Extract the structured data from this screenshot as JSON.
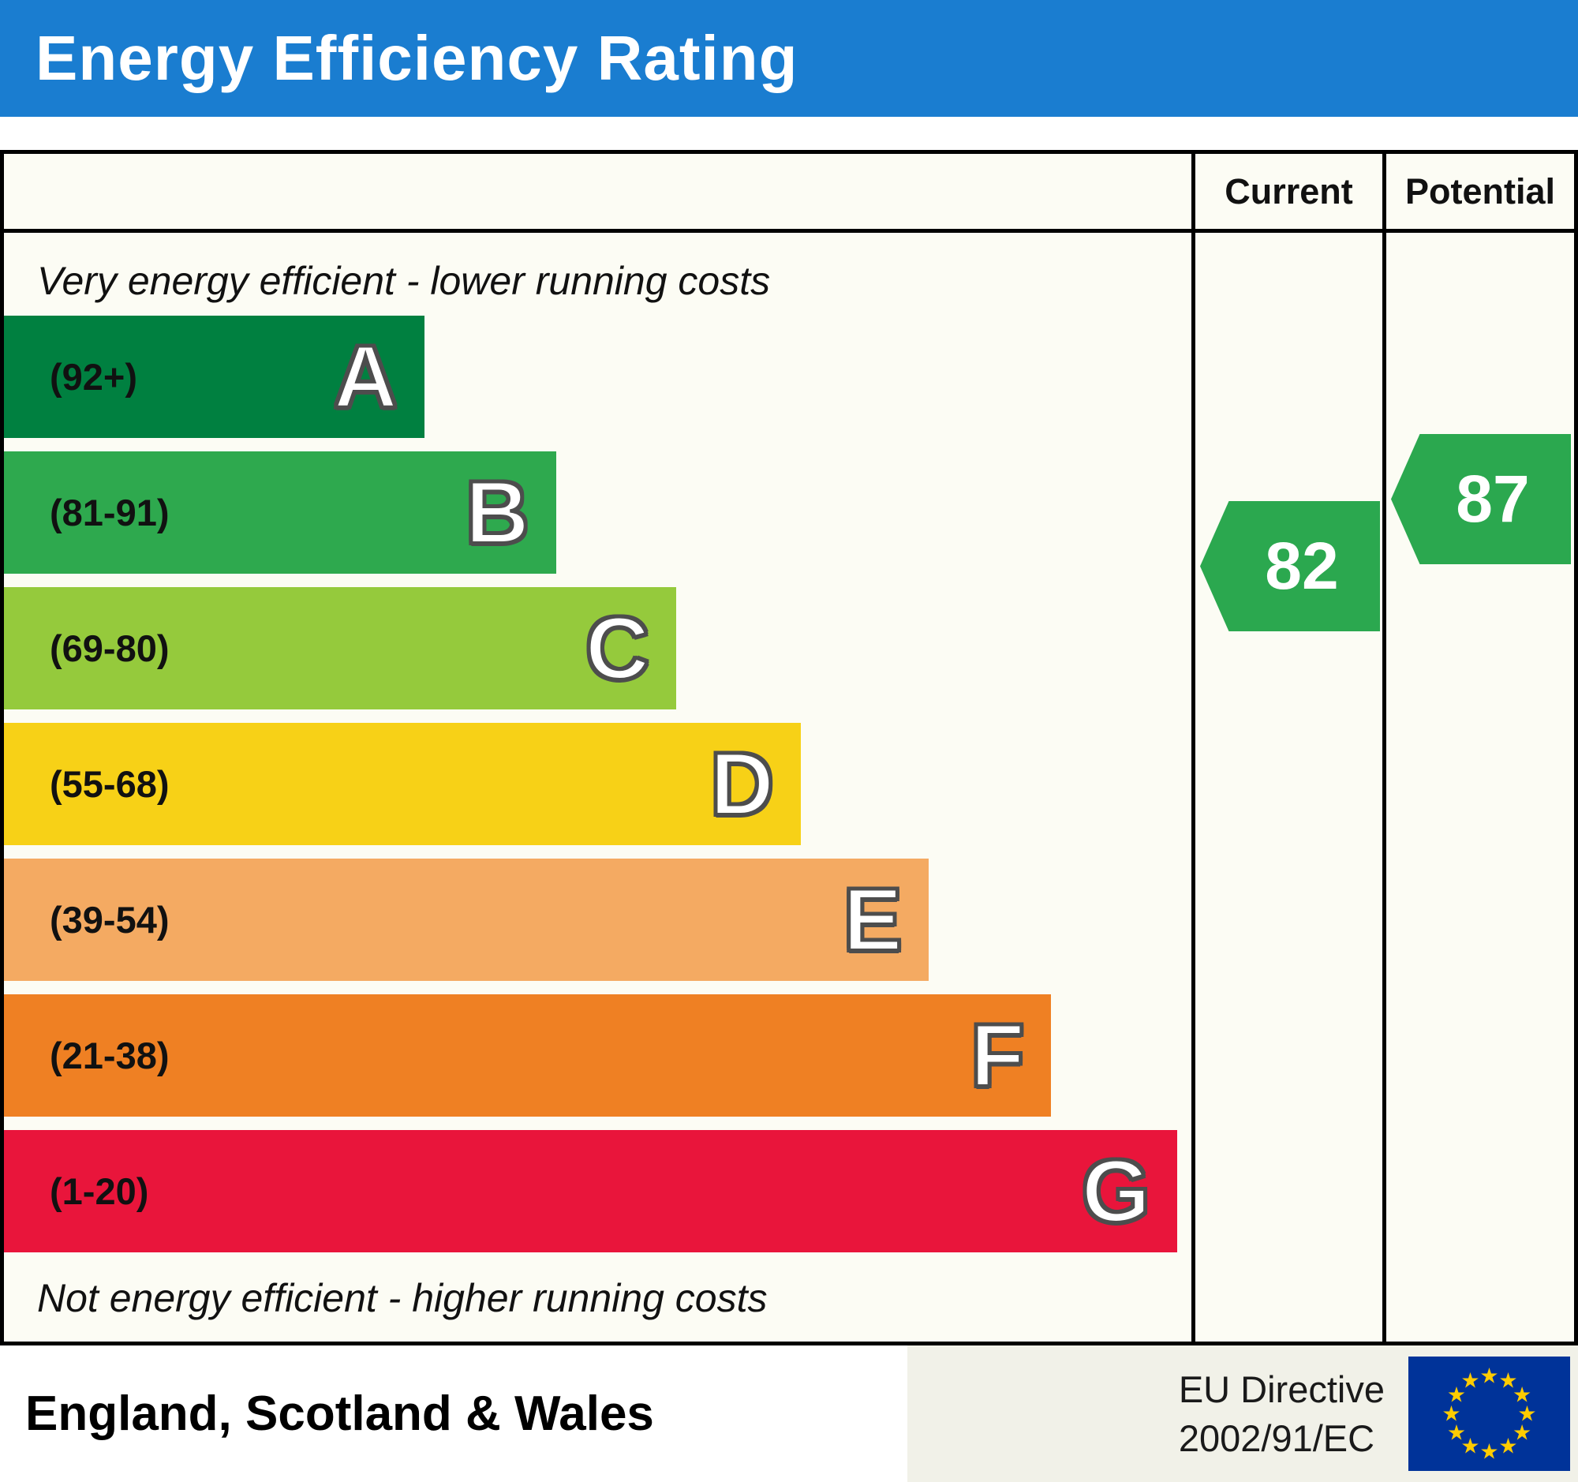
{
  "title": "Energy Efficiency Rating",
  "columns": {
    "current": "Current",
    "potential": "Potential"
  },
  "top_note": "Very energy efficient - lower running costs",
  "bottom_note": "Not energy efficient - higher running costs",
  "footer": {
    "region": "England, Scotland & Wales",
    "directive_line1": "EU Directive",
    "directive_line2": "2002/91/EC",
    "flag_icon": "eu-flag-icon"
  },
  "colors": {
    "header_bg": "#1a7dd0",
    "arrow_green": "#2ba84f",
    "border": "#000000",
    "chart_bg": "#fcfcf4",
    "flag_blue": "#003399",
    "flag_star_yellow": "#ffcc00"
  },
  "chart_data": {
    "type": "bar",
    "title": "Energy Efficiency Rating",
    "bands": [
      {
        "letter": "A",
        "range_label": "(92+)",
        "min": 92,
        "max": 100,
        "color": "#008040",
        "width_pct": 35.4
      },
      {
        "letter": "B",
        "range_label": "(81-91)",
        "min": 81,
        "max": 91,
        "color": "#2ea94e",
        "width_pct": 46.5
      },
      {
        "letter": "C",
        "range_label": "(69-80)",
        "min": 69,
        "max": 80,
        "color": "#95ca3c",
        "width_pct": 56.6
      },
      {
        "letter": "D",
        "range_label": "(55-68)",
        "min": 55,
        "max": 68,
        "color": "#f7d117",
        "width_pct": 67.1
      },
      {
        "letter": "E",
        "range_label": "(39-54)",
        "min": 39,
        "max": 54,
        "color": "#f4aa62",
        "width_pct": 77.9
      },
      {
        "letter": "F",
        "range_label": "(21-38)",
        "min": 21,
        "max": 38,
        "color": "#ef8023",
        "width_pct": 88.2
      },
      {
        "letter": "G",
        "range_label": "(1-20)",
        "min": 1,
        "max": 20,
        "color": "#e9153b",
        "width_pct": 98.8
      }
    ],
    "current": {
      "value": 82,
      "band": "B"
    },
    "potential": {
      "value": 87,
      "band": "B"
    }
  }
}
